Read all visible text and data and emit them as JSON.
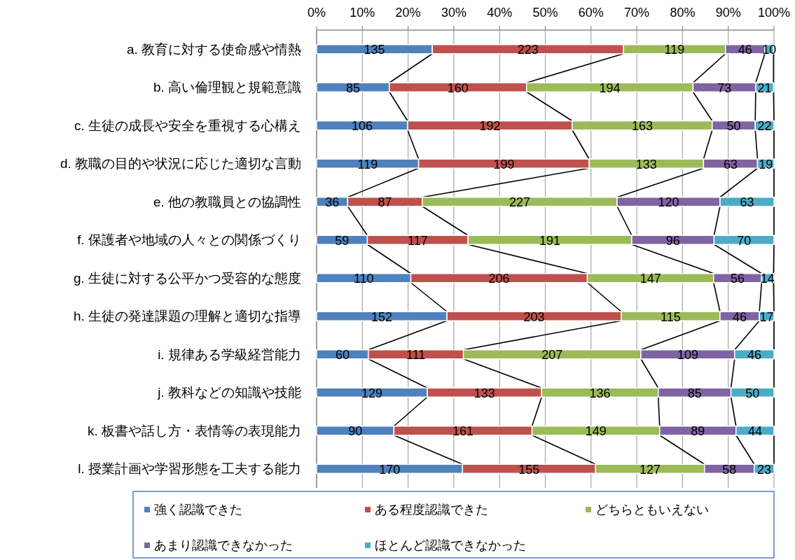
{
  "chart_data": {
    "type": "bar",
    "orientation": "horizontal",
    "stacked": true,
    "categories": [
      "a. 教育に対する使命感や情熱",
      "b. 高い倫理観と規範意識",
      "c. 生徒の成長や安全を重視する心構え",
      "d. 教職の目的や状況に応じた適切な言動",
      "e. 他の教職員との協調性",
      "f. 保護者や地域の人々との関係づくり",
      "g. 生徒に対する公平かつ受容的な態度",
      "h. 生徒の発達課題の理解と適切な指導",
      "i. 規律ある学級経営能力",
      "j. 教科などの知識や技能",
      "k. 板書や話し方・表情等の表現能力",
      "l. 授業計画や学習形態を工夫する能力"
    ],
    "series": [
      {
        "name": "強く認識できた",
        "color": "#4f81bd",
        "values": [
          25.3,
          15.9,
          19.9,
          22.3,
          6.8,
          11.1,
          20.6,
          28.5,
          11.3,
          24.2,
          16.9,
          31.9
        ]
      },
      {
        "name": "ある程度認識できた",
        "color": "#c0504d",
        "values": [
          41.8,
          30.0,
          36.0,
          37.3,
          16.3,
          22.0,
          38.6,
          38.1,
          20.8,
          25.0,
          30.2,
          29.1
        ]
      },
      {
        "name": "どちらともいえない",
        "color": "#9bbb59",
        "values": [
          22.3,
          36.4,
          30.6,
          25.0,
          42.6,
          35.8,
          27.6,
          21.6,
          38.8,
          25.5,
          27.9,
          23.8
        ]
      },
      {
        "name": "あまり認識できなかった",
        "color": "#8064a2",
        "values": [
          8.6,
          13.7,
          9.4,
          11.8,
          22.5,
          18.0,
          10.5,
          8.6,
          20.5,
          15.9,
          16.7,
          10.9
        ]
      },
      {
        "name": "ほとんど認識できなかった",
        "color": "#4bacc6",
        "values": [
          1.9,
          3.9,
          4.1,
          3.6,
          11.8,
          13.1,
          2.6,
          3.2,
          8.6,
          9.4,
          8.3,
          4.3
        ]
      }
    ],
    "annotations": [
      "135",
      "223",
      "119",
      "46",
      "10",
      "85",
      "160",
      "194",
      "73",
      "21",
      "106",
      "192",
      "163",
      "50",
      "22",
      "119",
      "199",
      "133",
      "63",
      "19",
      "36",
      "87",
      "227",
      "120",
      "63",
      "59",
      "117",
      "191",
      "96",
      "70",
      "110",
      "206",
      "147",
      "56",
      "14",
      "152",
      "203",
      "115",
      "46",
      "17",
      "60",
      "111",
      "207",
      "109",
      "46",
      "129",
      "133",
      "136",
      "85",
      "50",
      "90",
      "161",
      "149",
      "89",
      "44",
      "170",
      "155",
      "127",
      "58",
      "23"
    ],
    "xlim": [
      0,
      100
    ],
    "xticks": [
      {
        "value": 0,
        "label": "0%"
      },
      {
        "value": 10,
        "label": "10%"
      },
      {
        "value": 20,
        "label": "20%"
      },
      {
        "value": 30,
        "label": "30%"
      },
      {
        "value": 40,
        "label": "40%"
      },
      {
        "value": 50,
        "label": "50%"
      },
      {
        "value": 60,
        "label": "60%"
      },
      {
        "value": 70,
        "label": "70%"
      },
      {
        "value": 80,
        "label": "80%"
      },
      {
        "value": 90,
        "label": "90%"
      },
      {
        "value": 100,
        "label": "100%"
      }
    ],
    "grid": "x",
    "legend": "bottom",
    "line_style": "solid"
  }
}
